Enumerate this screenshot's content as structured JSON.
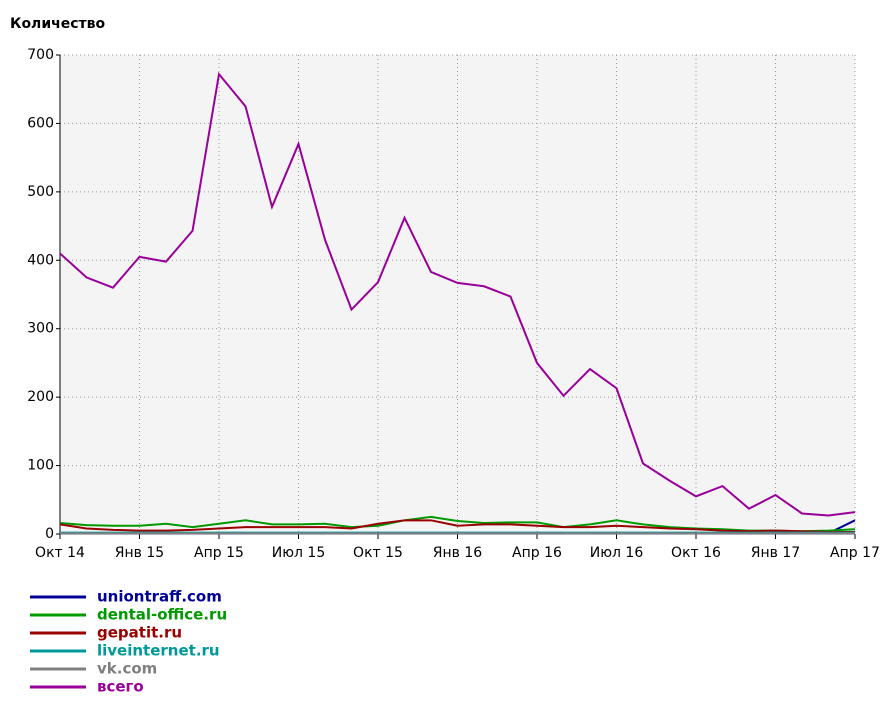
{
  "chart_data": {
    "type": "line",
    "ylabel": "Количество",
    "categories": [
      "Окт 14",
      null,
      null,
      "Янв 15",
      null,
      null,
      "Апр 15",
      null,
      null,
      "Июл 15",
      null,
      null,
      "Окт 15",
      null,
      null,
      "Янв 16",
      null,
      null,
      "Апр 16",
      null,
      null,
      "Июл 16",
      null,
      null,
      "Окт 16",
      null,
      null,
      "Янв 17",
      null,
      null,
      "Апр 17"
    ],
    "ylim": [
      0,
      700
    ],
    "yticks": [
      0,
      100,
      200,
      300,
      400,
      500,
      600,
      700
    ],
    "grid": true,
    "series": [
      {
        "name": "uniontraff.com",
        "color": "#000099",
        "values": [
          1,
          1,
          1,
          1,
          1,
          1,
          1,
          1,
          1,
          1,
          1,
          1,
          1,
          1,
          1,
          1,
          1,
          1,
          1,
          1,
          1,
          1,
          1,
          1,
          1,
          1,
          1,
          1,
          1,
          1,
          20
        ]
      },
      {
        "name": "dental-office.ru",
        "color": "#009900",
        "values": [
          16,
          13,
          12,
          12,
          15,
          10,
          15,
          20,
          14,
          14,
          15,
          10,
          12,
          20,
          25,
          19,
          16,
          17,
          17,
          10,
          14,
          20,
          14,
          10,
          8,
          7,
          5,
          5,
          4,
          5,
          7
        ]
      },
      {
        "name": "gepatit.ru",
        "color": "#990000",
        "values": [
          14,
          8,
          6,
          5,
          5,
          6,
          8,
          10,
          10,
          10,
          10,
          8,
          15,
          20,
          20,
          12,
          14,
          14,
          12,
          10,
          10,
          12,
          10,
          8,
          7,
          5,
          4,
          5,
          4,
          3,
          3
        ]
      },
      {
        "name": "liveinternet.ru",
        "color": "#009999",
        "values": [
          2,
          2,
          2,
          2,
          2,
          2,
          2,
          2,
          2,
          2,
          2,
          2,
          2,
          2,
          2,
          2,
          2,
          2,
          2,
          2,
          2,
          2,
          2,
          2,
          2,
          2,
          2,
          2,
          2,
          2,
          2
        ]
      },
      {
        "name": "vk.com",
        "color": "#808080",
        "values": [
          1,
          1,
          1,
          1,
          1,
          1,
          1,
          1,
          1,
          1,
          1,
          1,
          1,
          1,
          1,
          1,
          1,
          1,
          1,
          1,
          1,
          1,
          1,
          1,
          1,
          1,
          1,
          1,
          1,
          1,
          1
        ]
      },
      {
        "name": "всего",
        "color": "#990099",
        "values": [
          410,
          375,
          360,
          405,
          398,
          443,
          672,
          625,
          478,
          570,
          430,
          328,
          368,
          462,
          383,
          367,
          362,
          347,
          250,
          202,
          241,
          213,
          103,
          78,
          55,
          70,
          37,
          57,
          30,
          27,
          32
        ]
      }
    ]
  }
}
